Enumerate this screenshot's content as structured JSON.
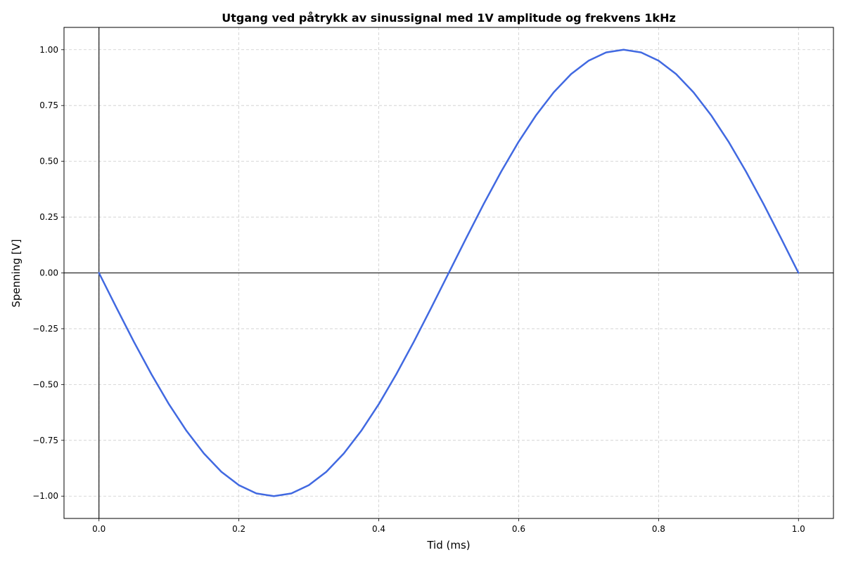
{
  "chart_data": {
    "type": "line",
    "title": "Utgang ved påtrykk av sinussignal med 1V amplitude og frekvens 1kHz",
    "xlabel": "Tid (ms)",
    "ylabel": "Spenning [V]",
    "xlim": [
      -0.05,
      1.05
    ],
    "ylim": [
      -1.1,
      1.1
    ],
    "xticks": [
      0.0,
      0.2,
      0.4,
      0.6,
      0.8,
      1.0
    ],
    "xtick_labels": [
      "0.0",
      "0.2",
      "0.4",
      "0.6",
      "0.8",
      "1.0"
    ],
    "yticks": [
      -1.0,
      -0.75,
      -0.5,
      -0.25,
      0.0,
      0.25,
      0.5,
      0.75,
      1.0
    ],
    "ytick_labels": [
      "−1.00",
      "−0.75",
      "−0.50",
      "−0.25",
      "0.00",
      "0.25",
      "0.50",
      "0.75",
      "1.00"
    ],
    "grid": true,
    "reference_lines": {
      "horizontal_at_y": 0,
      "vertical_at_x": 0
    },
    "series": [
      {
        "color": "#4169e1",
        "x": [
          0.0,
          0.025,
          0.05,
          0.075,
          0.1,
          0.125,
          0.15,
          0.175,
          0.2,
          0.225,
          0.25,
          0.275,
          0.3,
          0.325,
          0.35,
          0.375,
          0.4,
          0.425,
          0.45,
          0.475,
          0.5,
          0.525,
          0.55,
          0.575,
          0.6,
          0.625,
          0.65,
          0.675,
          0.7,
          0.725,
          0.75,
          0.775,
          0.8,
          0.825,
          0.85,
          0.875,
          0.9,
          0.925,
          0.95,
          0.975,
          1.0
        ],
        "y": [
          0.0,
          -0.156,
          -0.309,
          -0.454,
          -0.588,
          -0.707,
          -0.809,
          -0.891,
          -0.951,
          -0.988,
          -1.0,
          -0.988,
          -0.951,
          -0.891,
          -0.809,
          -0.707,
          -0.588,
          -0.454,
          -0.309,
          -0.156,
          0.0,
          0.156,
          0.309,
          0.454,
          0.588,
          0.707,
          0.809,
          0.891,
          0.951,
          0.988,
          1.0,
          0.988,
          0.951,
          0.891,
          0.809,
          0.707,
          0.588,
          0.454,
          0.309,
          0.156,
          0.0
        ]
      }
    ]
  }
}
